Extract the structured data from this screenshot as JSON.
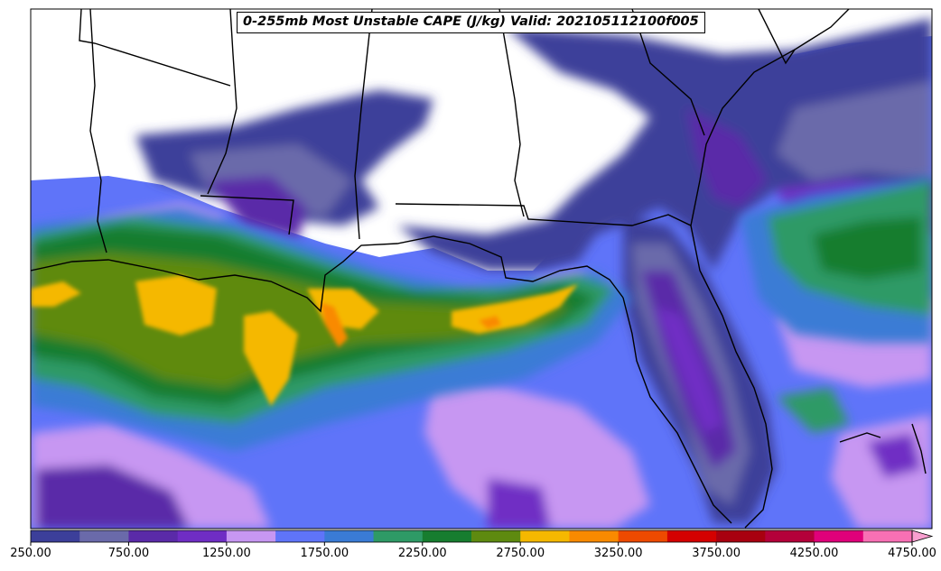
{
  "map": {
    "title": "0-255mb Most Unstable CAPE (J/kg) Valid: 202105112100f005",
    "region": "Gulf of Mexico / Southeast United States",
    "variable": "Most Unstable CAPE",
    "units": "J/kg",
    "background_color": "#ffffff",
    "border_color": "#000000"
  },
  "colorbar": {
    "orientation": "horizontal",
    "extend": "max",
    "min": 250,
    "max": 5000,
    "step": 250,
    "tick_labels": [
      "250.00",
      "750.00",
      "1250.00",
      "1750.00",
      "2250.00",
      "2750.00",
      "3250.00",
      "3750.00",
      "4250.00",
      "4750.00"
    ],
    "colors": [
      "#3c3f9a",
      "#6a6aaa",
      "#5a2aa8",
      "#6f2dc4",
      "#c797f2",
      "#5f74f9",
      "#3a7bd5",
      "#2e9a66",
      "#177d2f",
      "#5e8a10",
      "#f5b800",
      "#f98a00",
      "#ee4a00",
      "#d40000",
      "#a80010",
      "#b4003a",
      "#e0007a",
      "#f870b4",
      "#f9a0d0"
    ]
  }
}
